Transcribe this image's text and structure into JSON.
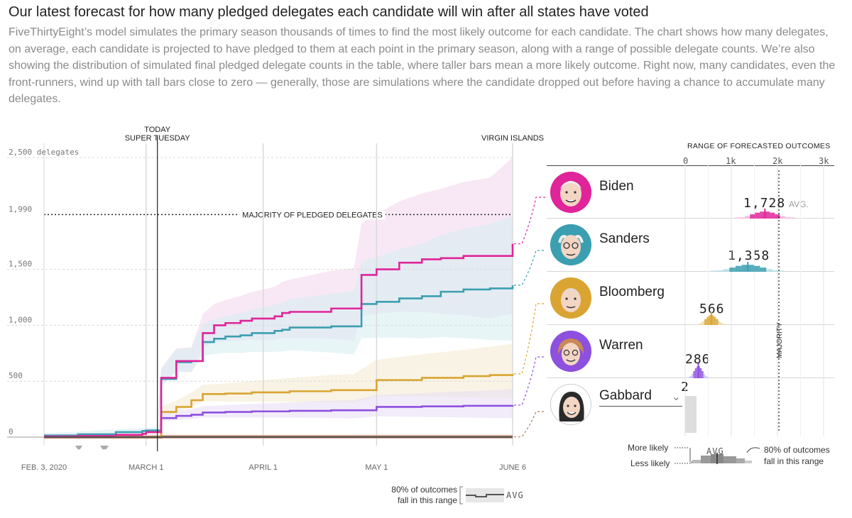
{
  "header": {
    "title": "Our latest forecast for how many pledged delegates each candidate will win after all states have voted",
    "description": "FiveThirtyEight’s model simulates the primary season thousands of times to find the most likely outcome for each candidate. The chart shows how many delegates, on average, each candidate is projected to have pledged to them at each point in the primary season, along with a range of possible delegate counts. We’re also showing the distribution of simulated final pledged delegate counts in the table, where taller bars mean a more likely outcome. Right now, many candidates, even the front-runners, wind up with tall bars close to zero — generally, those are simulations where the candidate dropped out before having a chance to accumulate many delegates."
  },
  "chart_data": {
    "type": "line",
    "ylabel_unit": "delegates",
    "y_ticks": [
      0,
      500,
      1000,
      1500,
      1990,
      2500
    ],
    "y_tick_labels": [
      "0",
      "500",
      "1,000",
      "1,500",
      "1,990",
      "2,500 delegates"
    ],
    "ylim": [
      0,
      2500
    ],
    "x_range_days": [
      0,
      124
    ],
    "x_ticks": [
      {
        "day": 0,
        "label": "FEB. 3, 2020"
      },
      {
        "day": 27,
        "label": "MARCH 1"
      },
      {
        "day": 58,
        "label": "APRIL 1"
      },
      {
        "day": 88,
        "label": "MAY 1"
      },
      {
        "day": 124,
        "label": "JUNE 6"
      }
    ],
    "markers": [
      {
        "day": 30,
        "label_top": "TODAY",
        "label_bottom": "SUPER TUESDAY"
      },
      {
        "day": 124,
        "label_top": "",
        "label_bottom": "VIRGIN ISLANDS"
      }
    ],
    "majority": {
      "value": 1990,
      "label": "MAJORITY OF PLEDGED DELEGATES"
    },
    "series": [
      {
        "name": "Biden",
        "color": "#e0249a",
        "x": [
          0,
          9,
          19,
          26,
          27,
          30,
          31,
          35,
          39,
          42,
          45,
          48,
          52,
          55,
          61,
          63,
          65,
          76,
          82,
          84,
          88,
          94,
          100,
          105,
          111,
          118,
          124
        ],
        "y": [
          5,
          10,
          20,
          30,
          45,
          45,
          530,
          680,
          680,
          930,
          1000,
          1020,
          1040,
          1060,
          1080,
          1110,
          1120,
          1150,
          1150,
          1450,
          1500,
          1560,
          1590,
          1600,
          1620,
          1620,
          1728
        ],
        "band_color": "#f3d6ec"
      },
      {
        "name": "Sanders",
        "color": "#3a9fb0",
        "x": [
          0,
          9,
          19,
          26,
          27,
          30,
          31,
          35,
          39,
          42,
          45,
          48,
          52,
          55,
          61,
          63,
          65,
          76,
          82,
          84,
          88,
          94,
          100,
          105,
          111,
          118,
          124
        ],
        "y": [
          15,
          25,
          45,
          55,
          60,
          60,
          520,
          670,
          680,
          850,
          880,
          900,
          910,
          930,
          950,
          960,
          980,
          990,
          990,
          1190,
          1210,
          1240,
          1260,
          1300,
          1320,
          1330,
          1358
        ],
        "band_color": "#d6ecf0"
      },
      {
        "name": "Bloomberg",
        "color": "#d9a431",
        "x": [
          0,
          27,
          30,
          31,
          35,
          39,
          42,
          48,
          55,
          65,
          76,
          82,
          88,
          100,
          111,
          118,
          124
        ],
        "y": [
          0,
          0,
          0,
          225,
          270,
          330,
          385,
          390,
          400,
          410,
          420,
          420,
          510,
          530,
          545,
          555,
          566
        ],
        "band_color": "#f4ead0"
      },
      {
        "name": "Warren",
        "color": "#8e50de",
        "x": [
          0,
          27,
          30,
          31,
          35,
          39,
          42,
          48,
          55,
          65,
          76,
          82,
          88,
          100,
          111,
          118,
          124
        ],
        "y": [
          0,
          0,
          0,
          170,
          190,
          200,
          220,
          225,
          230,
          235,
          240,
          240,
          270,
          275,
          280,
          280,
          286
        ],
        "band_color": "#e7dcf6"
      },
      {
        "name": "Gabbard",
        "color": "#b07a5a",
        "x": [
          0,
          31,
          124
        ],
        "y": [
          0,
          2,
          2
        ],
        "band_color": "#f1d6c8"
      }
    ]
  },
  "range_panel": {
    "header": "RANGE OF FORECASTED OUTCOMES",
    "ticks": [
      "0",
      "1k",
      "2k",
      "3k"
    ],
    "majority_label": "MAJORITY",
    "avg_suffix": "AVG.",
    "candidates": [
      {
        "name": "Biden",
        "avg": "1,728",
        "avg_value": 1728,
        "color": "#e0249a",
        "light": "#f4b6dd",
        "icon": "biden-avatar"
      },
      {
        "name": "Sanders",
        "avg": "1,358",
        "avg_value": 1358,
        "color": "#3a9fb0",
        "light": "#b4dde4",
        "icon": "sanders-avatar"
      },
      {
        "name": "Bloomberg",
        "avg": "566",
        "avg_value": 566,
        "color": "#d9a431",
        "light": "#f1d9a3",
        "icon": "bloomberg-avatar"
      },
      {
        "name": "Warren",
        "avg": "286",
        "avg_value": 286,
        "color": "#8e50de",
        "light": "#d2bdf2",
        "icon": "warren-avatar"
      },
      {
        "name": "Gabbard",
        "avg": "2",
        "avg_value": 2,
        "color": "#bbbbbb",
        "light": "#dddddd",
        "icon": "gabbard-avatar"
      }
    ]
  },
  "legends": {
    "more_likely": "More likely",
    "less_likely": "Less likely",
    "avg": "AVG",
    "outcomes_line1": "80% of outcomes",
    "outcomes_line2": "fall in this range",
    "bottom_line1": "80% of outcomes",
    "bottom_line2": "fall in this range",
    "bottom_avg": "AVG"
  }
}
